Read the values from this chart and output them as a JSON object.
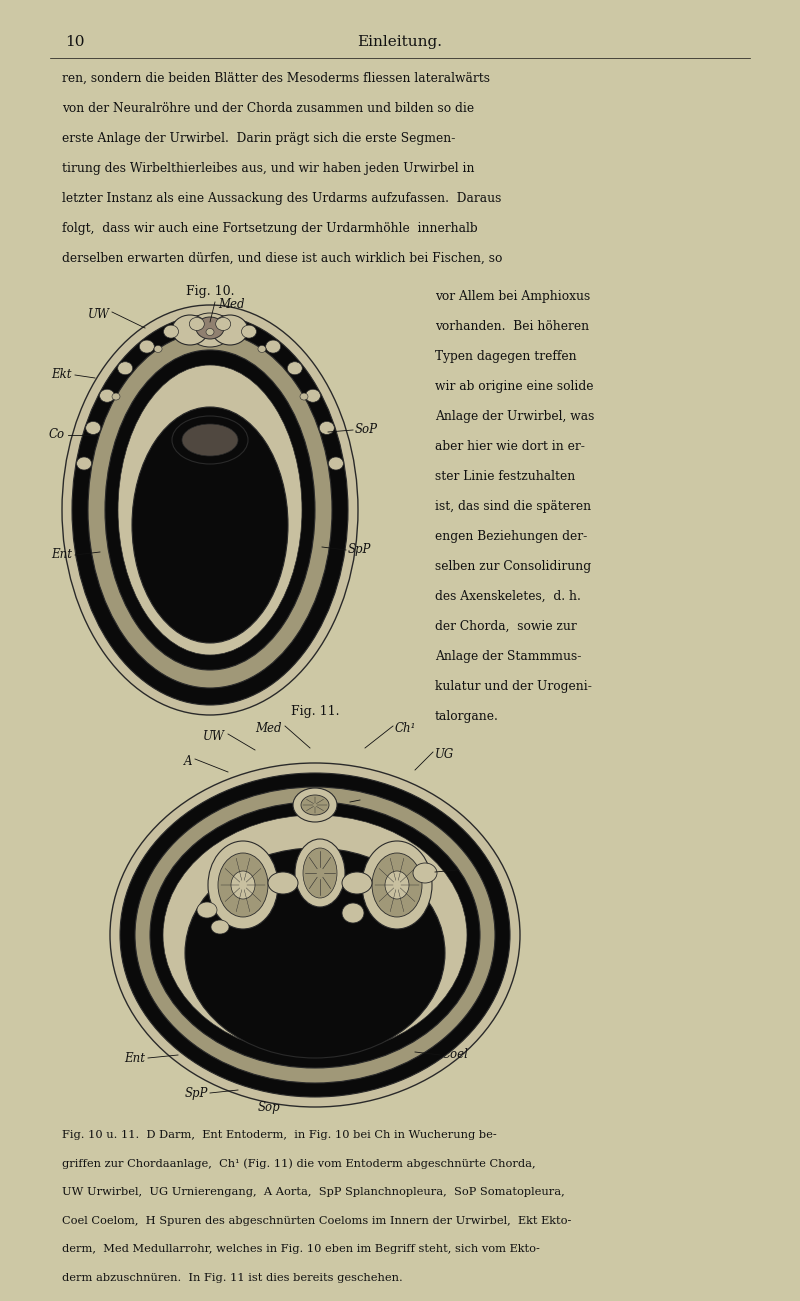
{
  "bg_color": "#cdc8a5",
  "text_color": "#111111",
  "page_number": "10",
  "header": "Einleitung.",
  "para1": "ren, sondern die beiden Blätter des Mesoderms fliessen lateralwärts",
  "para2": "von der Neuralröhre und der Chorda zusammen und bilden so die",
  "para3": "erste Anlage der Urwirbel.  Darin prägt sich die erste Segmen-",
  "para4": "tirung des Wirbelthierleibes aus, und wir haben jeden Urwirbel in",
  "para5": "letzter Instanz als eine Aussackung des Urdarms aufzufassen.  Daraus",
  "para6": "folgt,  dass wir auch eine Fortsetzung der Urdarmhöhle  innerhalb",
  "para7": "derselben erwarten dürfen, und diese ist auch wirklich bei Fischen, so",
  "fig10_caption": "Fig. 10.",
  "right_col": [
    "vor Allem bei Amphioxus",
    "vorhanden.  Bei höheren",
    "Typen dagegen treffen",
    "wir ab origine eine solide",
    "Anlage der Urwirbel, was",
    "aber hier wie dort in er-",
    "ster Linie festzuhalten",
    "ist, das sind die späteren",
    "engen Beziehungen der-",
    "selben zur Consolidirung",
    "des Axenskeletes,  d. h.",
    "der Chorda,  sowie zur",
    "Anlage der Stammmus-",
    "kulatur und der Urogeni-",
    "talorgane."
  ],
  "fig11_caption": "Fig. 11.",
  "footer_lines": [
    "Fig. 10 u. 11.  D Darm,  Ent Entoderm,  in Fig. 10 bei Ch in Wucherung be-",
    "griffen zur Chordaanlage,  Ch¹ (Fig. 11) die vom Entoderm abgeschnürte Chorda,",
    "UW Urwirbel,  UG Urnierengang,  A Aorta,  SpP Splanchnopleura,  SoP Somatopleura,",
    "Coel Coelom,  H Spuren des abgeschnürten Coeloms im Innern der Urwirbel,  Ekt Ekto-",
    "derm,  Med Medullarrohr, welches in Fig. 10 eben im Begriff steht, sich vom Ekto-",
    "derm abzuschnüren.  In Fig. 11 ist dies bereits geschehen."
  ],
  "dark": "#0a0a0a",
  "light_tan": "#c8c0a0",
  "med_tan": "#b0a888",
  "dark_tan": "#8a8470",
  "gray_tan": "#a09878",
  "edge": "#2a2a2a"
}
